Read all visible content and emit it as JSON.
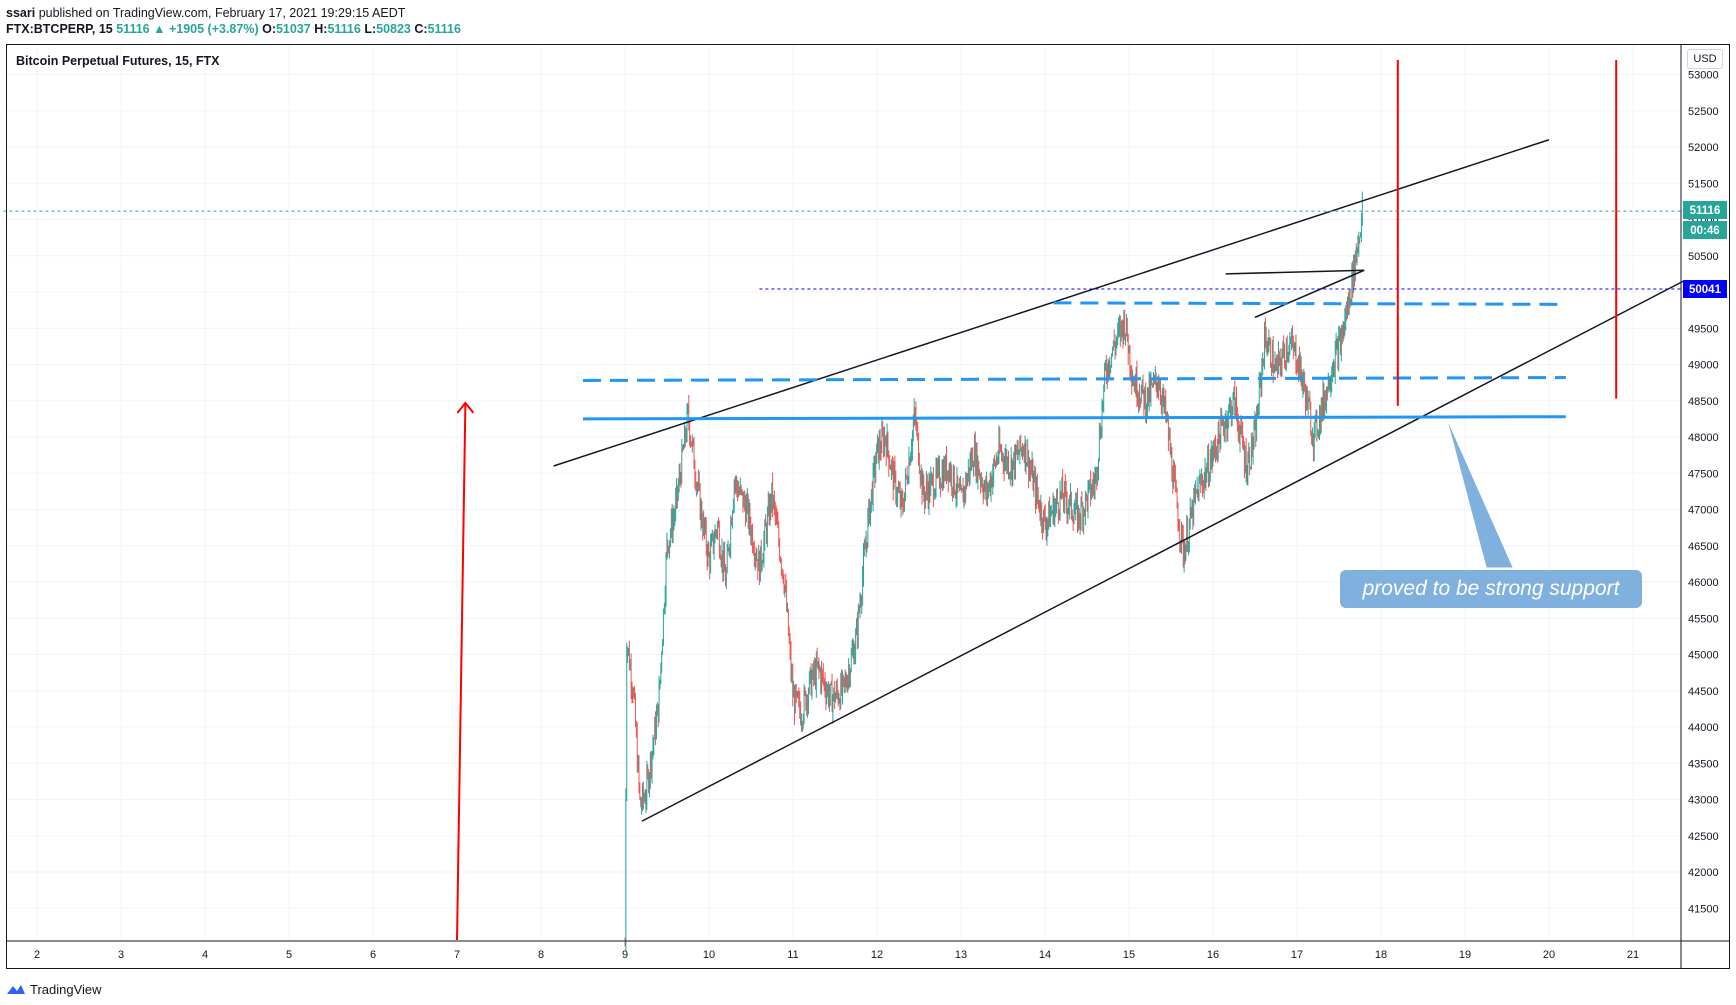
{
  "header": {
    "publisher": "ssari",
    "published_text": "published on TradingView.com, February 17, 2021 19:29:15 AEDT",
    "symbol": "FTX:BTCPERP, 15",
    "last": "51116",
    "change": "▲ +1905 (+3.87%)",
    "o_label": "O:",
    "o_value": "51037",
    "h_label": "H:",
    "h_value": "51116",
    "l_label": "L:",
    "l_value": "50823",
    "c_label": "C:",
    "c_value": "51116"
  },
  "chart_title": "Bitcoin Perpetual Futures, 15, FTX",
  "currency": "USD",
  "price_tags": {
    "current": "51116",
    "countdown": "00:46",
    "level": "50041"
  },
  "annotation": "proved to be strong support",
  "footer": {
    "brand": "TradingView"
  },
  "colors": {
    "up": "#26a69a",
    "down": "#ef5350",
    "support": "#2196f3",
    "trend": "#131722",
    "marker": "#ff0000",
    "level_tag": "#0000ff",
    "annotation": "#7fb0de"
  },
  "chart_data": {
    "type": "candlestick",
    "title": "Bitcoin Perpetual Futures, 15, FTX",
    "ylim": [
      41000,
      53100
    ],
    "xlim": [
      1.6,
      21.6
    ],
    "x_ticks": [
      "2",
      "3",
      "4",
      "5",
      "6",
      "7",
      "8",
      "9",
      "10",
      "11",
      "12",
      "13",
      "14",
      "15",
      "16",
      "17",
      "18",
      "19",
      "20",
      "21"
    ],
    "y_ticks": [
      "41500",
      "42000",
      "42500",
      "43000",
      "43500",
      "44000",
      "44500",
      "45000",
      "45500",
      "46000",
      "46500",
      "47000",
      "47500",
      "48000",
      "48500",
      "49000",
      "49500",
      "50000",
      "50500",
      "51000",
      "51500",
      "52000",
      "52500",
      "53000"
    ],
    "price_path": [
      [
        9.0,
        41000
      ],
      [
        9.02,
        45200
      ],
      [
        9.1,
        44500
      ],
      [
        9.18,
        42900
      ],
      [
        9.25,
        43100
      ],
      [
        9.4,
        44300
      ],
      [
        9.5,
        46500
      ],
      [
        9.6,
        47000
      ],
      [
        9.75,
        48300
      ],
      [
        9.9,
        47000
      ],
      [
        10.0,
        46300
      ],
      [
        10.1,
        46800
      ],
      [
        10.2,
        46000
      ],
      [
        10.3,
        47400
      ],
      [
        10.45,
        47000
      ],
      [
        10.6,
        46200
      ],
      [
        10.75,
        47200
      ],
      [
        10.9,
        46000
      ],
      [
        11.0,
        44400
      ],
      [
        11.1,
        44200
      ],
      [
        11.2,
        44600
      ],
      [
        11.3,
        44800
      ],
      [
        11.45,
        44400
      ],
      [
        11.6,
        44500
      ],
      [
        11.75,
        45200
      ],
      [
        11.9,
        46900
      ],
      [
        12.0,
        47800
      ],
      [
        12.1,
        48000
      ],
      [
        12.2,
        47400
      ],
      [
        12.3,
        47000
      ],
      [
        12.45,
        48300
      ],
      [
        12.55,
        47200
      ],
      [
        12.7,
        47400
      ],
      [
        12.85,
        47600
      ],
      [
        13.0,
        47100
      ],
      [
        13.15,
        47800
      ],
      [
        13.3,
        47200
      ],
      [
        13.45,
        47800
      ],
      [
        13.6,
        47600
      ],
      [
        13.75,
        47900
      ],
      [
        13.9,
        47200
      ],
      [
        14.0,
        46800
      ],
      [
        14.2,
        47200
      ],
      [
        14.4,
        46900
      ],
      [
        14.6,
        47400
      ],
      [
        14.72,
        48900
      ],
      [
        14.8,
        49200
      ],
      [
        14.95,
        49600
      ],
      [
        15.05,
        48800
      ],
      [
        15.2,
        48500
      ],
      [
        15.35,
        48800
      ],
      [
        15.45,
        48200
      ],
      [
        15.55,
        47200
      ],
      [
        15.65,
        46400
      ],
      [
        15.8,
        47200
      ],
      [
        15.95,
        47600
      ],
      [
        16.1,
        48100
      ],
      [
        16.25,
        48500
      ],
      [
        16.4,
        47600
      ],
      [
        16.5,
        48000
      ],
      [
        16.62,
        49400
      ],
      [
        16.75,
        48900
      ],
      [
        16.9,
        49300
      ],
      [
        17.0,
        49100
      ],
      [
        17.1,
        48600
      ],
      [
        17.2,
        48000
      ],
      [
        17.32,
        48500
      ],
      [
        17.42,
        49000
      ],
      [
        17.52,
        49300
      ],
      [
        17.62,
        49900
      ],
      [
        17.7,
        50500
      ],
      [
        17.78,
        51116
      ]
    ],
    "lines": [
      {
        "name": "upper trend line",
        "color": "#131722",
        "points": [
          [
            8.15,
            47600
          ],
          [
            20.0,
            52100
          ]
        ]
      },
      {
        "name": "lower trend line",
        "color": "#131722",
        "points": [
          [
            9.2,
            42700
          ],
          [
            21.6,
            50150
          ]
        ]
      },
      {
        "name": "short resistance",
        "color": "#131722",
        "points": [
          [
            16.15,
            50250
          ],
          [
            17.8,
            50300
          ]
        ]
      },
      {
        "name": "short rising line",
        "color": "#131722",
        "points": [
          [
            16.5,
            49650
          ],
          [
            17.8,
            50300
          ]
        ]
      },
      {
        "name": "support",
        "color": "#2196f3",
        "style": "solid",
        "points": [
          [
            8.5,
            48250
          ],
          [
            20.2,
            48280
          ]
        ]
      },
      {
        "name": "dashed level 1",
        "color": "#2196f3",
        "style": "dashed",
        "points": [
          [
            8.5,
            48780
          ],
          [
            20.2,
            48820
          ]
        ]
      },
      {
        "name": "dashed level 2",
        "color": "#2196f3",
        "style": "dashed",
        "points": [
          [
            14.1,
            49850
          ],
          [
            20.1,
            49830
          ]
        ]
      },
      {
        "name": "dotted level",
        "color": "#0000ff",
        "style": "dotted",
        "points": [
          [
            10.6,
            50041
          ],
          [
            21.6,
            50041
          ]
        ]
      },
      {
        "name": "current price",
        "color": "#26a69a",
        "style": "dotted",
        "points": [
          [
            1.6,
            51116
          ],
          [
            21.6,
            51116
          ]
        ]
      }
    ],
    "markers": [
      {
        "name": "red arrow",
        "color": "#ff0000",
        "points": [
          [
            7.0,
            41000
          ],
          [
            7.1,
            48470
          ]
        ]
      },
      {
        "name": "red vertical 1",
        "color": "#ff0000",
        "points": [
          [
            18.2,
            48430
          ],
          [
            18.2,
            53200
          ]
        ]
      },
      {
        "name": "red vertical 2",
        "color": "#ff0000",
        "points": [
          [
            20.8,
            48530
          ],
          [
            20.8,
            53200
          ]
        ]
      }
    ],
    "annotation_pointer": {
      "tip": [
        18.8,
        48200
      ],
      "base": [
        19.4,
        46200
      ]
    }
  }
}
